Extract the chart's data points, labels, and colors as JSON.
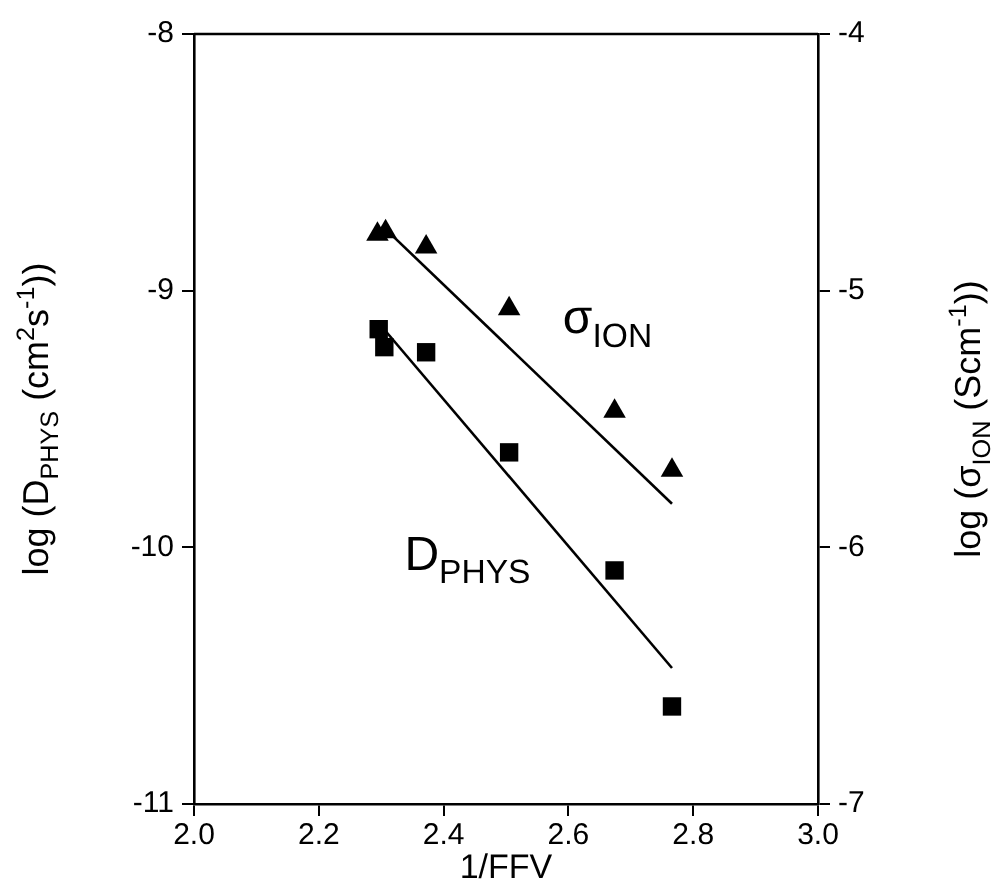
{
  "chart_data": {
    "type": "scatter",
    "xlabel": "1/FFV",
    "ylabel": "log (D$_{PHYS}$ (cm$^{2}$s$^{-1}$))",
    "y2label": "log (σ$_{ION}$ (Scm$^{-1}$))",
    "xlim": [
      2,
      3
    ],
    "xticks": [
      {
        "value": 2,
        "label": "2.0"
      },
      {
        "value": 2.2,
        "label": "2.2"
      },
      {
        "value": 2.4,
        "label": "2.4"
      },
      {
        "value": 2.6,
        "label": "2.6"
      },
      {
        "value": 2.8,
        "label": "2.8"
      },
      {
        "value": 3,
        "label": "3.0"
      }
    ],
    "ylim": [
      -11,
      -8
    ],
    "yticks": [
      -11,
      -10,
      -9,
      -8
    ],
    "y2lim": [
      -7,
      -4
    ],
    "y2ticks": [
      -7,
      -6,
      -5,
      -4
    ],
    "grid": false,
    "legend": false,
    "series": [
      {
        "type": "scatter",
        "name": "σ$_{ION}$",
        "axis": "y2",
        "marker": "triangle",
        "color": "#000000",
        "x": [
          2.294,
          2.307,
          2.372,
          2.505,
          2.674,
          2.766
        ],
        "values": [
          -4.78,
          -4.77,
          -4.83,
          -5.07,
          -5.47,
          -5.7
        ]
      },
      {
        "type": "scatter",
        "name": "D$_{PHYS}$",
        "axis": "y",
        "marker": "square",
        "color": "#000000",
        "x": [
          2.296,
          2.305,
          2.372,
          2.505,
          2.674,
          2.766
        ],
        "values": [
          -9.15,
          -9.22,
          -9.24,
          -9.63,
          -10.09,
          -10.62
        ]
      },
      {
        "type": "line",
        "axis": "y2",
        "marker": "none",
        "line_style": "solid",
        "color": "#000000",
        "x": [
          2.307,
          2.766
        ],
        "values": [
          -4.76,
          -5.83
        ]
      },
      {
        "type": "line",
        "axis": "y",
        "marker": "none",
        "line_style": "solid",
        "color": "#000000",
        "x": [
          2.294,
          2.766
        ],
        "values": [
          -9.12,
          -10.47
        ]
      }
    ]
  }
}
